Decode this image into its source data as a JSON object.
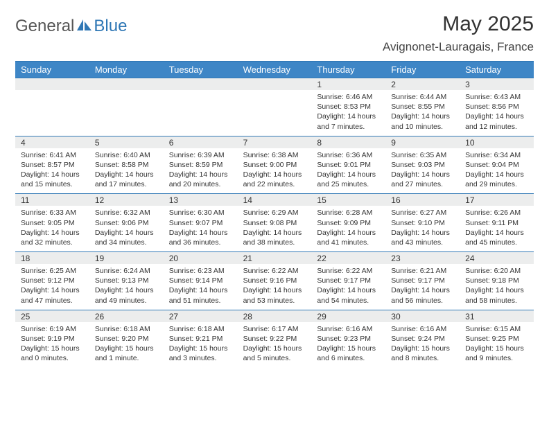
{
  "logo": {
    "general": "General",
    "blue": "Blue"
  },
  "title": {
    "month": "May 2025",
    "location": "Avignonet-Lauragais, France"
  },
  "colors": {
    "header_bg": "#3e86c6",
    "header_border": "#2f77b5",
    "daynum_bg": "#eceded",
    "text": "#333333",
    "logo_gray": "#555555",
    "logo_blue": "#2f77b5"
  },
  "day_names": [
    "Sunday",
    "Monday",
    "Tuesday",
    "Wednesday",
    "Thursday",
    "Friday",
    "Saturday"
  ],
  "weeks": [
    [
      null,
      null,
      null,
      null,
      {
        "num": "1",
        "sunrise": "Sunrise: 6:46 AM",
        "sunset": "Sunset: 8:53 PM",
        "day1": "Daylight: 14 hours",
        "day2": "and 7 minutes."
      },
      {
        "num": "2",
        "sunrise": "Sunrise: 6:44 AM",
        "sunset": "Sunset: 8:55 PM",
        "day1": "Daylight: 14 hours",
        "day2": "and 10 minutes."
      },
      {
        "num": "3",
        "sunrise": "Sunrise: 6:43 AM",
        "sunset": "Sunset: 8:56 PM",
        "day1": "Daylight: 14 hours",
        "day2": "and 12 minutes."
      }
    ],
    [
      {
        "num": "4",
        "sunrise": "Sunrise: 6:41 AM",
        "sunset": "Sunset: 8:57 PM",
        "day1": "Daylight: 14 hours",
        "day2": "and 15 minutes."
      },
      {
        "num": "5",
        "sunrise": "Sunrise: 6:40 AM",
        "sunset": "Sunset: 8:58 PM",
        "day1": "Daylight: 14 hours",
        "day2": "and 17 minutes."
      },
      {
        "num": "6",
        "sunrise": "Sunrise: 6:39 AM",
        "sunset": "Sunset: 8:59 PM",
        "day1": "Daylight: 14 hours",
        "day2": "and 20 minutes."
      },
      {
        "num": "7",
        "sunrise": "Sunrise: 6:38 AM",
        "sunset": "Sunset: 9:00 PM",
        "day1": "Daylight: 14 hours",
        "day2": "and 22 minutes."
      },
      {
        "num": "8",
        "sunrise": "Sunrise: 6:36 AM",
        "sunset": "Sunset: 9:01 PM",
        "day1": "Daylight: 14 hours",
        "day2": "and 25 minutes."
      },
      {
        "num": "9",
        "sunrise": "Sunrise: 6:35 AM",
        "sunset": "Sunset: 9:03 PM",
        "day1": "Daylight: 14 hours",
        "day2": "and 27 minutes."
      },
      {
        "num": "10",
        "sunrise": "Sunrise: 6:34 AM",
        "sunset": "Sunset: 9:04 PM",
        "day1": "Daylight: 14 hours",
        "day2": "and 29 minutes."
      }
    ],
    [
      {
        "num": "11",
        "sunrise": "Sunrise: 6:33 AM",
        "sunset": "Sunset: 9:05 PM",
        "day1": "Daylight: 14 hours",
        "day2": "and 32 minutes."
      },
      {
        "num": "12",
        "sunrise": "Sunrise: 6:32 AM",
        "sunset": "Sunset: 9:06 PM",
        "day1": "Daylight: 14 hours",
        "day2": "and 34 minutes."
      },
      {
        "num": "13",
        "sunrise": "Sunrise: 6:30 AM",
        "sunset": "Sunset: 9:07 PM",
        "day1": "Daylight: 14 hours",
        "day2": "and 36 minutes."
      },
      {
        "num": "14",
        "sunrise": "Sunrise: 6:29 AM",
        "sunset": "Sunset: 9:08 PM",
        "day1": "Daylight: 14 hours",
        "day2": "and 38 minutes."
      },
      {
        "num": "15",
        "sunrise": "Sunrise: 6:28 AM",
        "sunset": "Sunset: 9:09 PM",
        "day1": "Daylight: 14 hours",
        "day2": "and 41 minutes."
      },
      {
        "num": "16",
        "sunrise": "Sunrise: 6:27 AM",
        "sunset": "Sunset: 9:10 PM",
        "day1": "Daylight: 14 hours",
        "day2": "and 43 minutes."
      },
      {
        "num": "17",
        "sunrise": "Sunrise: 6:26 AM",
        "sunset": "Sunset: 9:11 PM",
        "day1": "Daylight: 14 hours",
        "day2": "and 45 minutes."
      }
    ],
    [
      {
        "num": "18",
        "sunrise": "Sunrise: 6:25 AM",
        "sunset": "Sunset: 9:12 PM",
        "day1": "Daylight: 14 hours",
        "day2": "and 47 minutes."
      },
      {
        "num": "19",
        "sunrise": "Sunrise: 6:24 AM",
        "sunset": "Sunset: 9:13 PM",
        "day1": "Daylight: 14 hours",
        "day2": "and 49 minutes."
      },
      {
        "num": "20",
        "sunrise": "Sunrise: 6:23 AM",
        "sunset": "Sunset: 9:14 PM",
        "day1": "Daylight: 14 hours",
        "day2": "and 51 minutes."
      },
      {
        "num": "21",
        "sunrise": "Sunrise: 6:22 AM",
        "sunset": "Sunset: 9:16 PM",
        "day1": "Daylight: 14 hours",
        "day2": "and 53 minutes."
      },
      {
        "num": "22",
        "sunrise": "Sunrise: 6:22 AM",
        "sunset": "Sunset: 9:17 PM",
        "day1": "Daylight: 14 hours",
        "day2": "and 54 minutes."
      },
      {
        "num": "23",
        "sunrise": "Sunrise: 6:21 AM",
        "sunset": "Sunset: 9:17 PM",
        "day1": "Daylight: 14 hours",
        "day2": "and 56 minutes."
      },
      {
        "num": "24",
        "sunrise": "Sunrise: 6:20 AM",
        "sunset": "Sunset: 9:18 PM",
        "day1": "Daylight: 14 hours",
        "day2": "and 58 minutes."
      }
    ],
    [
      {
        "num": "25",
        "sunrise": "Sunrise: 6:19 AM",
        "sunset": "Sunset: 9:19 PM",
        "day1": "Daylight: 15 hours",
        "day2": "and 0 minutes."
      },
      {
        "num": "26",
        "sunrise": "Sunrise: 6:18 AM",
        "sunset": "Sunset: 9:20 PM",
        "day1": "Daylight: 15 hours",
        "day2": "and 1 minute."
      },
      {
        "num": "27",
        "sunrise": "Sunrise: 6:18 AM",
        "sunset": "Sunset: 9:21 PM",
        "day1": "Daylight: 15 hours",
        "day2": "and 3 minutes."
      },
      {
        "num": "28",
        "sunrise": "Sunrise: 6:17 AM",
        "sunset": "Sunset: 9:22 PM",
        "day1": "Daylight: 15 hours",
        "day2": "and 5 minutes."
      },
      {
        "num": "29",
        "sunrise": "Sunrise: 6:16 AM",
        "sunset": "Sunset: 9:23 PM",
        "day1": "Daylight: 15 hours",
        "day2": "and 6 minutes."
      },
      {
        "num": "30",
        "sunrise": "Sunrise: 6:16 AM",
        "sunset": "Sunset: 9:24 PM",
        "day1": "Daylight: 15 hours",
        "day2": "and 8 minutes."
      },
      {
        "num": "31",
        "sunrise": "Sunrise: 6:15 AM",
        "sunset": "Sunset: 9:25 PM",
        "day1": "Daylight: 15 hours",
        "day2": "and 9 minutes."
      }
    ]
  ]
}
